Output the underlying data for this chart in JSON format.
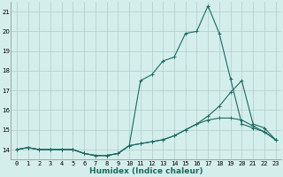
{
  "xlabel": "Humidex (Indice chaleur)",
  "background_color": "#d4eeeb",
  "grid_color": "#b0ccc9",
  "line_color": "#1a6b62",
  "xlim": [
    -0.5,
    23.5
  ],
  "ylim": [
    13.5,
    21.5
  ],
  "yticks": [
    14,
    15,
    16,
    17,
    18,
    19,
    20,
    21
  ],
  "xtick_labels": [
    "0",
    "1",
    "2",
    "3",
    "4",
    "5",
    "6",
    "7",
    "8",
    "9",
    "10",
    "11",
    "12",
    "13",
    "14",
    "15",
    "16",
    "17",
    "18",
    "19",
    "20",
    "21",
    "22",
    "23"
  ],
  "series": [
    {
      "x": [
        0,
        1,
        2,
        3,
        4,
        5,
        6,
        7,
        8,
        9,
        10,
        11,
        12,
        13,
        14,
        15,
        16,
        17,
        18,
        19,
        20,
        21,
        22,
        23
      ],
      "y": [
        14.0,
        14.1,
        14.0,
        14.0,
        14.0,
        14.0,
        13.8,
        13.7,
        13.7,
        13.8,
        14.2,
        17.5,
        17.8,
        18.5,
        18.7,
        19.9,
        20.0,
        21.3,
        19.9,
        17.6,
        15.3,
        15.1,
        14.9,
        14.5
      ]
    },
    {
      "x": [
        0,
        1,
        2,
        3,
        4,
        5,
        6,
        7,
        8,
        9,
        10,
        11,
        12,
        13,
        14,
        15,
        16,
        17,
        18,
        19,
        20,
        21,
        22,
        23
      ],
      "y": [
        14.0,
        14.1,
        14.0,
        14.0,
        14.0,
        14.0,
        13.8,
        13.7,
        13.7,
        13.8,
        14.2,
        14.3,
        14.4,
        14.5,
        14.7,
        15.0,
        15.3,
        15.7,
        16.2,
        16.9,
        17.5,
        15.3,
        15.1,
        14.5
      ]
    },
    {
      "x": [
        0,
        1,
        2,
        3,
        4,
        5,
        6,
        7,
        8,
        9,
        10,
        11,
        12,
        13,
        14,
        15,
        16,
        17,
        18,
        19,
        20,
        21,
        22,
        23
      ],
      "y": [
        14.0,
        14.1,
        14.0,
        14.0,
        14.0,
        14.0,
        13.8,
        13.7,
        13.7,
        13.8,
        14.2,
        14.3,
        14.4,
        14.5,
        14.7,
        15.0,
        15.3,
        15.5,
        15.6,
        15.6,
        15.5,
        15.2,
        14.9,
        14.5
      ]
    }
  ],
  "xlabel_fontsize": 6.5,
  "tick_fontsize": 5.0
}
